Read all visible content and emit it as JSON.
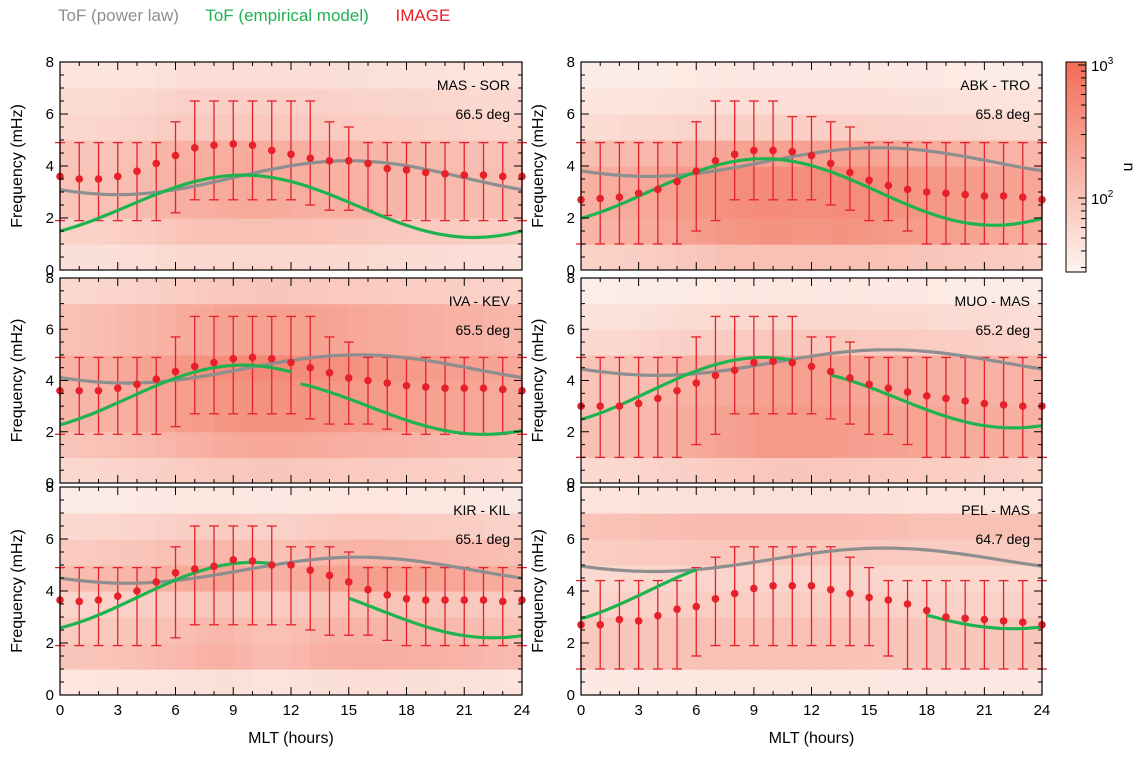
{
  "legend": {
    "power_law": "ToF (power law)",
    "empirical": "ToF (empirical model)",
    "image": "IMAGE"
  },
  "colors": {
    "power_law": "#8e8e8e",
    "empirical": "#1fb350",
    "image": "#e8202a",
    "heat_low": "#fdf4ef",
    "heat_high": "#f26c56"
  },
  "colorbar": {
    "label": "n",
    "tick_top": "10",
    "tick_top_exp": "3",
    "tick_mid": "10",
    "tick_mid_exp": "2",
    "scale": "log"
  },
  "chart_data": [
    {
      "type": "scatter",
      "station": "MAS - SOR",
      "latitude": "66.5 deg",
      "xlabel": "",
      "ylabel": "Frequency (mHz)",
      "xlim": [
        0,
        24
      ],
      "ylim": [
        0,
        8
      ],
      "xticks": [
        0,
        3,
        6,
        9,
        12,
        15,
        18,
        21,
        24
      ],
      "yticks": [
        0,
        2,
        4,
        6,
        8
      ],
      "image_mlt": [
        0,
        1,
        2,
        3,
        4,
        5,
        6,
        7,
        8,
        9,
        10,
        11,
        12,
        13,
        14,
        15,
        16,
        17,
        18,
        19,
        20,
        21,
        22,
        23,
        24
      ],
      "image_freq": [
        3.6,
        3.5,
        3.5,
        3.6,
        3.8,
        4.1,
        4.4,
        4.7,
        4.8,
        4.85,
        4.8,
        4.6,
        4.45,
        4.3,
        4.2,
        4.2,
        4.1,
        3.9,
        3.85,
        3.75,
        3.7,
        3.65,
        3.65,
        3.6,
        3.6
      ],
      "err_low": [
        1.9,
        1.9,
        1.9,
        1.9,
        1.9,
        1.9,
        2.2,
        2.7,
        2.7,
        2.7,
        2.7,
        2.7,
        2.7,
        2.5,
        2.3,
        2.3,
        2.3,
        2.1,
        1.9,
        1.9,
        1.9,
        1.9,
        1.9,
        1.9,
        1.9
      ],
      "err_high": [
        4.9,
        4.9,
        4.9,
        4.9,
        4.9,
        4.9,
        5.7,
        6.5,
        6.5,
        6.5,
        6.5,
        6.5,
        6.5,
        6.5,
        5.7,
        5.5,
        4.9,
        4.9,
        4.9,
        4.9,
        4.9,
        4.9,
        4.9,
        4.9,
        4.9
      ],
      "power_law": {
        "mean": 3.55,
        "amplitude": 0.65,
        "peak_mlt": 15
      },
      "empirical": [
        {
          "mean": 2.45,
          "amplitude": 1.2,
          "peak_mlt": 9.5,
          "from": 0,
          "to": 24
        }
      ],
      "heat_rows": [
        0.2,
        0.35,
        0.5,
        0.5,
        0.48,
        0.3,
        0.25,
        0.15
      ],
      "heat_cols": [
        0.72,
        0.72,
        0.75,
        0.8,
        0.85,
        0.95,
        1.02,
        1.05,
        1.08,
        1.1,
        1.1,
        1.08,
        1.05,
        1.02,
        1.0,
        0.98,
        0.95,
        0.92,
        0.9,
        0.88,
        0.85,
        0.82,
        0.8,
        0.78
      ]
    },
    {
      "type": "scatter",
      "station": "ABK - TRO",
      "latitude": "65.8 deg",
      "xlabel": "",
      "ylabel": "Frequency (mHz)",
      "xlim": [
        0,
        24
      ],
      "ylim": [
        0,
        8
      ],
      "xticks": [
        0,
        3,
        6,
        9,
        12,
        15,
        18,
        21,
        24
      ],
      "yticks": [
        0,
        2,
        4,
        6,
        8
      ],
      "image_mlt": [
        0,
        1,
        2,
        3,
        4,
        5,
        6,
        7,
        8,
        9,
        10,
        11,
        12,
        13,
        14,
        15,
        16,
        17,
        18,
        19,
        20,
        21,
        22,
        23,
        24
      ],
      "image_freq": [
        2.7,
        2.75,
        2.8,
        2.95,
        3.1,
        3.4,
        3.8,
        4.2,
        4.45,
        4.6,
        4.6,
        4.55,
        4.4,
        4.1,
        3.75,
        3.45,
        3.25,
        3.1,
        3.0,
        2.95,
        2.9,
        2.85,
        2.85,
        2.8,
        2.7
      ],
      "err_low": [
        1.0,
        1.0,
        1.0,
        1.0,
        1.0,
        1.0,
        1.5,
        1.9,
        2.7,
        2.7,
        2.7,
        2.7,
        2.7,
        2.5,
        2.3,
        1.9,
        1.9,
        1.5,
        1.0,
        1.0,
        1.0,
        1.0,
        1.0,
        1.0,
        1.0
      ],
      "err_high": [
        4.9,
        4.9,
        4.9,
        4.9,
        4.9,
        4.9,
        5.7,
        6.5,
        6.5,
        6.5,
        6.5,
        5.9,
        5.9,
        5.7,
        5.5,
        4.9,
        4.9,
        4.9,
        4.9,
        4.9,
        4.9,
        4.9,
        4.9,
        4.9,
        4.9
      ],
      "power_law": {
        "mean": 4.15,
        "amplitude": 0.55,
        "peak_mlt": 15.5
      },
      "empirical": [
        {
          "mean": 3.0,
          "amplitude": 1.28,
          "peak_mlt": 9.5,
          "from": 0,
          "to": 24
        }
      ],
      "heat_rows": [
        0.35,
        0.65,
        0.7,
        0.7,
        0.55,
        0.25,
        0.15,
        0.08
      ],
      "heat_cols": [
        0.72,
        0.75,
        0.78,
        0.82,
        0.88,
        0.95,
        1.0,
        1.05,
        1.08,
        1.1,
        1.1,
        1.08,
        1.08,
        1.1,
        1.08,
        1.05,
        1.02,
        1.0,
        0.98,
        0.95,
        0.92,
        0.88,
        0.85,
        0.82
      ]
    },
    {
      "type": "scatter",
      "station": "IVA - KEV",
      "latitude": "65.5 deg",
      "xlabel": "",
      "ylabel": "Frequency (mHz)",
      "xlim": [
        0,
        24
      ],
      "ylim": [
        0,
        8
      ],
      "xticks": [
        0,
        3,
        6,
        9,
        12,
        15,
        18,
        21,
        24
      ],
      "yticks": [
        0,
        2,
        4,
        6,
        8
      ],
      "image_mlt": [
        0,
        1,
        2,
        3,
        4,
        5,
        6,
        7,
        8,
        9,
        10,
        11,
        12,
        13,
        14,
        15,
        16,
        17,
        18,
        19,
        20,
        21,
        22,
        23,
        24
      ],
      "image_freq": [
        3.6,
        3.6,
        3.6,
        3.7,
        3.85,
        4.05,
        4.35,
        4.55,
        4.7,
        4.85,
        4.9,
        4.85,
        4.7,
        4.5,
        4.3,
        4.1,
        4.0,
        3.9,
        3.8,
        3.75,
        3.7,
        3.7,
        3.7,
        3.65,
        3.6
      ],
      "err_low": [
        1.9,
        1.9,
        1.9,
        1.9,
        1.9,
        1.9,
        2.2,
        2.7,
        2.7,
        2.7,
        2.7,
        2.7,
        2.7,
        2.5,
        2.3,
        2.3,
        2.3,
        2.1,
        1.9,
        1.9,
        1.9,
        1.9,
        1.9,
        1.9,
        1.9
      ],
      "err_high": [
        4.9,
        4.9,
        4.9,
        4.9,
        4.9,
        4.9,
        5.7,
        6.5,
        6.5,
        6.5,
        6.5,
        6.5,
        6.5,
        6.5,
        5.7,
        5.5,
        4.9,
        4.9,
        4.9,
        4.9,
        4.9,
        4.9,
        4.9,
        4.9,
        4.9
      ],
      "power_law": {
        "mean": 4.45,
        "amplitude": 0.55,
        "peak_mlt": 15.5
      },
      "empirical": [
        {
          "mean": 3.3,
          "amplitude": 1.3,
          "peak_mlt": 9.5,
          "from": 0,
          "to": 12
        },
        {
          "mean": 3.0,
          "amplitude": 1.1,
          "peak_mlt": 10,
          "from": 12.5,
          "to": 24
        }
      ],
      "heat_rows": [
        0.3,
        0.5,
        0.65,
        0.65,
        0.7,
        0.55,
        0.55,
        0.3
      ],
      "heat_cols": [
        0.7,
        0.72,
        0.75,
        0.8,
        0.85,
        0.9,
        0.98,
        1.02,
        1.08,
        1.1,
        1.12,
        1.12,
        1.1,
        1.08,
        1.05,
        1.02,
        1.0,
        0.98,
        0.95,
        0.92,
        0.9,
        0.88,
        0.85,
        0.82
      ]
    },
    {
      "type": "scatter",
      "station": "MUO - MAS",
      "latitude": "65.2 deg",
      "xlabel": "",
      "ylabel": "Frequency (mHz)",
      "xlim": [
        0,
        24
      ],
      "ylim": [
        0,
        8
      ],
      "xticks": [
        0,
        3,
        6,
        9,
        12,
        15,
        18,
        21,
        24
      ],
      "yticks": [
        0,
        2,
        4,
        6,
        8
      ],
      "image_mlt": [
        0,
        1,
        2,
        3,
        4,
        5,
        6,
        7,
        8,
        9,
        10,
        11,
        12,
        13,
        14,
        15,
        16,
        17,
        18,
        19,
        20,
        21,
        22,
        23,
        24
      ],
      "image_freq": [
        3.0,
        3.0,
        3.0,
        3.1,
        3.3,
        3.6,
        3.9,
        4.2,
        4.4,
        4.7,
        4.75,
        4.7,
        4.55,
        4.35,
        4.1,
        3.85,
        3.7,
        3.55,
        3.4,
        3.3,
        3.2,
        3.1,
        3.05,
        3.0,
        3.0
      ],
      "err_low": [
        1.0,
        1.0,
        1.0,
        1.0,
        1.0,
        1.0,
        1.5,
        1.9,
        2.7,
        2.7,
        2.7,
        2.7,
        2.7,
        2.5,
        2.3,
        1.9,
        1.9,
        1.5,
        1.0,
        1.0,
        1.0,
        1.0,
        1.0,
        1.0,
        1.0
      ],
      "err_high": [
        4.9,
        4.9,
        4.9,
        4.9,
        4.9,
        4.9,
        5.7,
        6.5,
        6.5,
        6.5,
        6.5,
        6.5,
        5.7,
        5.7,
        5.5,
        4.9,
        4.9,
        4.9,
        4.9,
        4.9,
        4.9,
        4.9,
        4.9,
        4.9,
        4.9
      ],
      "power_law": {
        "mean": 4.7,
        "amplitude": 0.5,
        "peak_mlt": 16
      },
      "empirical": [
        {
          "mean": 3.55,
          "amplitude": 1.35,
          "peak_mlt": 9.5,
          "from": 0,
          "to": 11
        },
        {
          "mean": 3.3,
          "amplitude": 1.15,
          "peak_mlt": 10.5,
          "from": 13,
          "to": 24
        }
      ],
      "heat_rows": [
        0.3,
        0.6,
        0.6,
        0.55,
        0.55,
        0.3,
        0.2,
        0.08
      ],
      "heat_cols": [
        0.65,
        0.68,
        0.7,
        0.75,
        0.85,
        0.9,
        0.95,
        1.0,
        1.05,
        1.1,
        1.12,
        1.12,
        1.1,
        1.08,
        1.05,
        1.02,
        1.0,
        0.98,
        0.95,
        0.92,
        0.9,
        0.88,
        0.85,
        0.82
      ]
    },
    {
      "type": "scatter",
      "station": "KIR - KIL",
      "latitude": "65.1 deg",
      "xlabel": "MLT (hours)",
      "ylabel": "Frequency (mHz)",
      "xlim": [
        0,
        24
      ],
      "ylim": [
        0,
        8
      ],
      "xticks": [
        0,
        3,
        6,
        9,
        12,
        15,
        18,
        21,
        24
      ],
      "yticks": [
        0,
        2,
        4,
        6,
        8
      ],
      "image_mlt": [
        0,
        1,
        2,
        3,
        4,
        5,
        6,
        7,
        8,
        9,
        10,
        11,
        12,
        13,
        14,
        15,
        16,
        17,
        18,
        19,
        20,
        21,
        22,
        23,
        24
      ],
      "image_freq": [
        3.65,
        3.6,
        3.65,
        3.8,
        4.0,
        4.35,
        4.7,
        4.85,
        4.95,
        5.2,
        5.15,
        5.0,
        5.0,
        4.8,
        4.6,
        4.35,
        4.05,
        3.85,
        3.7,
        3.65,
        3.65,
        3.65,
        3.65,
        3.6,
        3.65
      ],
      "err_low": [
        1.9,
        1.9,
        1.9,
        1.9,
        1.9,
        1.9,
        2.2,
        2.7,
        2.7,
        2.7,
        2.7,
        2.7,
        2.7,
        2.5,
        2.3,
        2.3,
        2.3,
        2.1,
        1.9,
        1.9,
        1.9,
        1.9,
        1.9,
        1.9,
        1.9
      ],
      "err_high": [
        4.9,
        4.9,
        4.9,
        4.9,
        4.9,
        4.9,
        5.7,
        6.5,
        6.5,
        6.5,
        6.5,
        6.5,
        5.7,
        5.7,
        5.7,
        5.5,
        4.9,
        4.9,
        4.9,
        4.9,
        4.9,
        4.9,
        4.9,
        4.9,
        4.9
      ],
      "power_law": {
        "mean": 4.8,
        "amplitude": 0.5,
        "peak_mlt": 15.5
      },
      "empirical": [
        {
          "mean": 3.75,
          "amplitude": 1.35,
          "peak_mlt": 10,
          "from": 0,
          "to": 11
        },
        {
          "mean": 3.3,
          "amplitude": 1.1,
          "peak_mlt": 10.5,
          "from": 15,
          "to": 24
        }
      ],
      "heat_rows": [
        0.15,
        0.5,
        0.45,
        0.35,
        0.6,
        0.45,
        0.3,
        0.1
      ],
      "heat_cols": [
        0.68,
        0.7,
        0.72,
        0.75,
        0.8,
        0.85,
        0.9,
        0.95,
        1.0,
        0.92,
        0.85,
        0.85,
        0.9,
        0.98,
        1.02,
        1.05,
        1.05,
        1.02,
        1.0,
        0.98,
        0.95,
        0.92,
        0.88,
        0.85
      ]
    },
    {
      "type": "scatter",
      "station": "PEL - MAS",
      "latitude": "64.7 deg",
      "xlabel": "MLT (hours)",
      "ylabel": "Frequency (mHz)",
      "xlim": [
        0,
        24
      ],
      "ylim": [
        0,
        8
      ],
      "xticks": [
        0,
        3,
        6,
        9,
        12,
        15,
        18,
        21,
        24
      ],
      "yticks": [
        0,
        2,
        4,
        6,
        8
      ],
      "image_mlt": [
        0,
        1,
        2,
        3,
        4,
        5,
        6,
        7,
        8,
        9,
        10,
        11,
        12,
        13,
        14,
        15,
        16,
        17,
        18,
        19,
        20,
        21,
        22,
        23,
        24
      ],
      "image_freq": [
        2.7,
        2.7,
        2.9,
        2.85,
        3.05,
        3.3,
        3.4,
        3.7,
        3.9,
        4.1,
        4.2,
        4.2,
        4.2,
        4.05,
        3.9,
        3.75,
        3.65,
        3.5,
        3.25,
        3.0,
        2.95,
        2.9,
        2.85,
        2.8,
        2.7
      ],
      "err_low": [
        1.0,
        1.0,
        1.0,
        1.0,
        1.0,
        1.0,
        1.5,
        1.9,
        1.9,
        1.9,
        1.9,
        1.9,
        1.9,
        1.9,
        1.9,
        1.9,
        1.5,
        1.0,
        1.0,
        1.0,
        1.0,
        1.0,
        1.0,
        1.0,
        1.0
      ],
      "err_high": [
        4.4,
        4.4,
        4.4,
        4.4,
        4.4,
        4.4,
        4.9,
        5.3,
        5.7,
        5.7,
        5.7,
        5.7,
        5.7,
        5.7,
        5.3,
        4.9,
        4.4,
        4.4,
        4.4,
        4.4,
        4.4,
        4.4,
        4.4,
        4.4,
        4.4
      ],
      "power_law": {
        "mean": 5.2,
        "amplitude": 0.45,
        "peak_mlt": 15.8
      },
      "empirical": [
        {
          "mean": 4.0,
          "amplitude": 1.35,
          "peak_mlt": 9.5,
          "from": 0,
          "to": 6
        },
        {
          "mean": 3.4,
          "amplitude": 0.85,
          "peak_mlt": 10.5,
          "from": 18,
          "to": 24
        }
      ],
      "heat_rows": [
        0.1,
        0.4,
        0.4,
        0.3,
        0.25,
        0.35,
        0.45,
        0.15
      ],
      "heat_cols": [
        0.8,
        0.82,
        0.85,
        0.88,
        0.9,
        0.92,
        0.95,
        0.95,
        0.95,
        0.95,
        0.95,
        0.95,
        0.95,
        0.95,
        0.92,
        0.9,
        0.88,
        0.85,
        0.85,
        0.85,
        0.85,
        0.85,
        0.85,
        0.85
      ]
    }
  ]
}
